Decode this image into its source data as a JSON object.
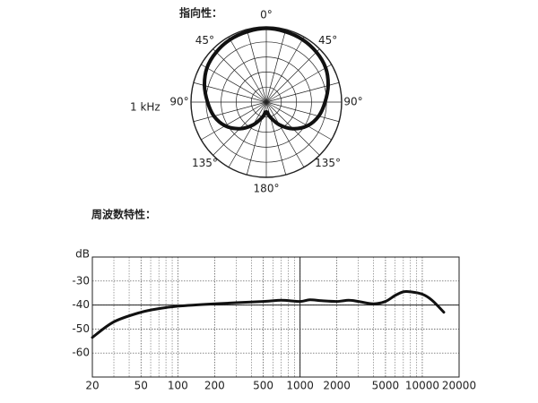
{
  "chart_data": [
    {
      "type": "polar",
      "title": "指向性：",
      "label": "1 kHz",
      "angles": [
        0,
        15,
        30,
        45,
        60,
        75,
        90,
        105,
        120,
        135,
        150,
        165,
        180,
        195,
        210,
        225,
        240,
        255,
        270,
        285,
        300,
        315,
        330,
        345
      ],
      "values": [
        0.98,
        0.97,
        0.96,
        0.94,
        0.91,
        0.85,
        0.78,
        0.72,
        0.63,
        0.5,
        0.35,
        0.21,
        0.13,
        0.21,
        0.35,
        0.5,
        0.63,
        0.72,
        0.78,
        0.85,
        0.91,
        0.94,
        0.96,
        0.97
      ],
      "rlim": [
        0,
        1
      ],
      "rticks": [
        0.2,
        0.4,
        0.6,
        0.8,
        1
      ],
      "thetaticks": [
        {
          "value": 0,
          "label": "0°"
        },
        {
          "value": 45,
          "label": "45°"
        },
        {
          "value": 90,
          "label": "90°"
        },
        {
          "value": 135,
          "label": "135°"
        },
        {
          "value": 180,
          "label": "180°"
        },
        {
          "value": 225,
          "label": "135°"
        },
        {
          "value": 270,
          "label": "90°"
        },
        {
          "value": 315,
          "label": "45°"
        }
      ],
      "color": "#111111"
    },
    {
      "type": "line",
      "title": "周波数特性：",
      "y_label": "dB",
      "x": [
        20,
        30,
        50,
        70,
        100,
        200,
        500,
        700,
        1000,
        1200,
        1500,
        2000,
        2500,
        3000,
        4000,
        5000,
        6000,
        7000,
        8000,
        10000,
        12000,
        15000
      ],
      "values": [
        -53.5,
        -47,
        -43,
        -41.5,
        -40.5,
        -39.5,
        -38.5,
        -38,
        -38.5,
        -37.8,
        -38.2,
        -38.5,
        -38,
        -38.5,
        -39.5,
        -38.5,
        -36,
        -34.5,
        -34.5,
        -35.5,
        -38,
        -43
      ],
      "xlim": [
        20,
        20000
      ],
      "ylim": [
        -70,
        -20
      ],
      "log_x": true,
      "xticks": [
        20,
        50,
        100,
        200,
        500,
        1000,
        2000,
        5000,
        10000,
        20000
      ],
      "xminor": [
        30,
        40,
        60,
        70,
        80,
        90,
        300,
        400,
        600,
        700,
        800,
        900,
        3000,
        4000,
        6000,
        7000,
        8000,
        9000
      ],
      "yticks": [
        -30,
        -40,
        -50,
        -60
      ],
      "ref_y": -40,
      "ref_x": 1000,
      "color": "#111111"
    }
  ]
}
